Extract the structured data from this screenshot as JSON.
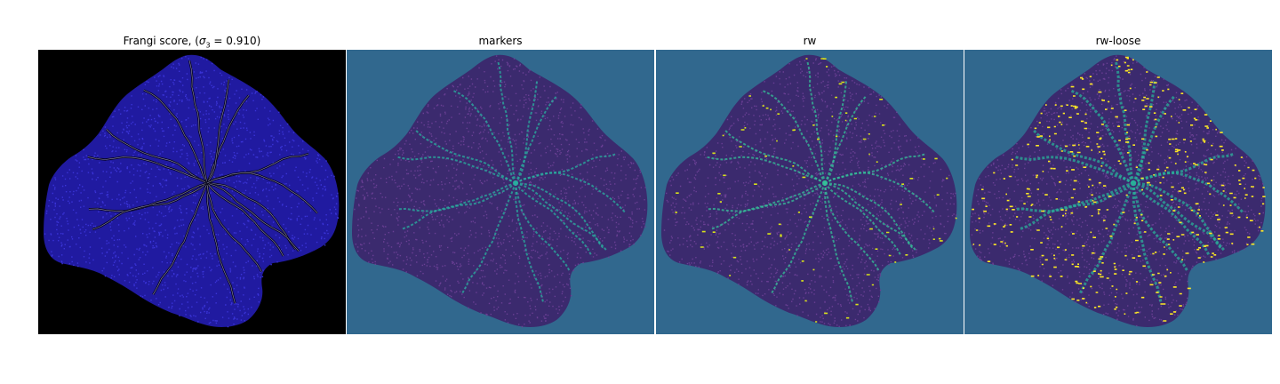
{
  "figure": {
    "panels": [
      {
        "title_prefix": "Frangi score, (",
        "title_symbol": "σ",
        "title_subscript": "3",
        "title_suffix": " = 0.910)",
        "background": "#000000",
        "fill": "#201aa0",
        "texture": "#3a34d8",
        "accent": "#e8e0ff"
      },
      {
        "title": "markers",
        "background": "#31688e",
        "fill": "#3b2a6e",
        "texture": "#6a3f94",
        "accent": "#2ab0a0"
      },
      {
        "title": "rw",
        "background": "#31688e",
        "fill": "#3b2a6e",
        "texture": "#6a3f94",
        "accent": "#35c29a",
        "highlight": "#d8e219"
      },
      {
        "title": "rw-loose",
        "background": "#31688e",
        "fill": "#3b2a6e",
        "texture": "#6a3f94",
        "accent": "#2ab09a",
        "highlight": "#fde725"
      }
    ]
  }
}
